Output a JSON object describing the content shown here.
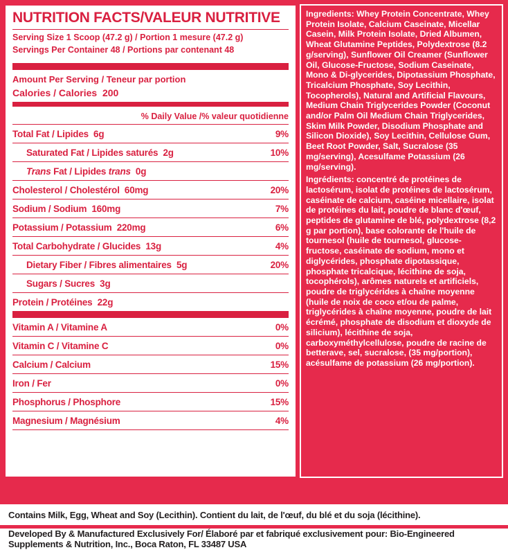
{
  "colors": {
    "background_red": "#e62a4c",
    "label_red": "#d92040",
    "panel_white": "#ffffff",
    "footer_text": "#231f20"
  },
  "nutrition_panel": {
    "title": "NUTRITION FACTS/VALEUR NUTRITIVE",
    "serving_size": "Serving Size 1 Scoop (47.2 g) / Portion 1 mesure (47.2 g)",
    "servings_per_container": "Servings Per Container 48 / Portions par contenant 48",
    "amount_per_serving": "Amount Per Serving / Teneur par portion",
    "calories_label": "Calories / Calories",
    "calories_value": "200",
    "daily_value_header": "% Daily Value /% valeur quotidienne",
    "rows": [
      {
        "label": "Total Fat / Lipides  6g",
        "percent": "9%"
      },
      {
        "label": "Saturated Fat / Lipides saturés  2g",
        "percent": "10%"
      },
      {
        "label_parts": {
          "italic1": "Trans",
          "middle": " Fat / Lipides ",
          "italic2": "trans",
          "end": "  0g"
        },
        "percent": ""
      },
      {
        "label": "Cholesterol / Cholestérol  60mg",
        "percent": "20%"
      },
      {
        "label": "Sodium / Sodium  160mg",
        "percent": "7%"
      },
      {
        "label": "Potassium / Potassium  220mg",
        "percent": "6%"
      },
      {
        "label": "Total Carbohydrate / Glucides  13g",
        "percent": "4%"
      },
      {
        "label": "Dietary Fiber / Fibres alimentaires  5g",
        "percent": "20%"
      },
      {
        "label": "Sugars / Sucres  3g",
        "percent": ""
      },
      {
        "label": "Protein / Protéines  22g",
        "percent": ""
      }
    ],
    "vitamins": [
      {
        "label": "Vitamin A / Vitamine A",
        "percent": "0%"
      },
      {
        "label": "Vitamin C / Vitamine C",
        "percent": "0%"
      },
      {
        "label": "Calcium / Calcium",
        "percent": "15%"
      },
      {
        "label": "Iron / Fer",
        "percent": "0%"
      },
      {
        "label": "Phosphorus / Phosphore",
        "percent": "15%"
      },
      {
        "label": "Magnesium / Magnésium",
        "percent": "4%"
      }
    ]
  },
  "ingredients": {
    "en_label": "Ingredients:",
    "en_text": " Whey Protein Concentrate, Whey Protein Isolate, Calcium Caseinate, Micellar Casein, Milk Protein Isolate, Dried Albumen, Wheat Glutamine Peptides, Polydextrose (8.2 g/serving), Sunflower Oil Creamer (Sunflower Oil, Glucose-Fructose, Sodium Caseinate, Mono & Di-glycerides, Dipotassium Phosphate, Tricalcium Phosphate, Soy Lecithin, Tocopherols), Natural and Artificial Flavours, Medium Chain Triglycerides Powder (Coconut and/or Palm Oil Medium Chain Triglycerides, Skim Milk Powder, Disodium Phosphate and Silicon Dioxide), Soy Lecithin, Cellulose Gum, Beet Root Powder, Salt, Sucralose (35 mg/serving), Acesulfame Potassium (26 mg/serving).",
    "fr_label": "Ingrédients:",
    "fr_text": " concentré de protéines de lactosérum, isolat de protéines de lactosérum, caséinate de calcium, caséine micellaire, isolat de protéines du lait, poudre de blanc d'œuf, peptides de glutamine de blé, polydextrose (8,2 g par portion), base colorante de l'huile de tournesol (huile de tournesol, glucose-fructose, caséinate de sodium, mono et diglycérides, phosphate dipotassique, phosphate tricalcique, lécithine de soja, tocophérols), arômes naturels et artificiels, poudre de triglycérides à chaîne moyenne (huile de noix de coco et/ou de palme, triglycérides à chaîne moyenne, poudre de lait écrémé, phosphate de disodium et dioxyde de silicium), lécithine de soja, carboxyméthylcellulose, poudre de racine de betterave, sel, sucralose, (35 mg/portion), acésulfame de potassium (26 mg/portion)."
  },
  "footer": {
    "contains": "Contains Milk, Egg, Wheat and Soy (Lecithin). Contient du lait, de l'œuf, du blé et du soja (lécithine).",
    "manufacturer": "Developed By & Manufactured Exclusively For/ Élaboré par et fabriqué exclusivement pour: Bio-Engineered Supplements & Nutrition, Inc., Boca Raton, FL 33487 USA"
  }
}
